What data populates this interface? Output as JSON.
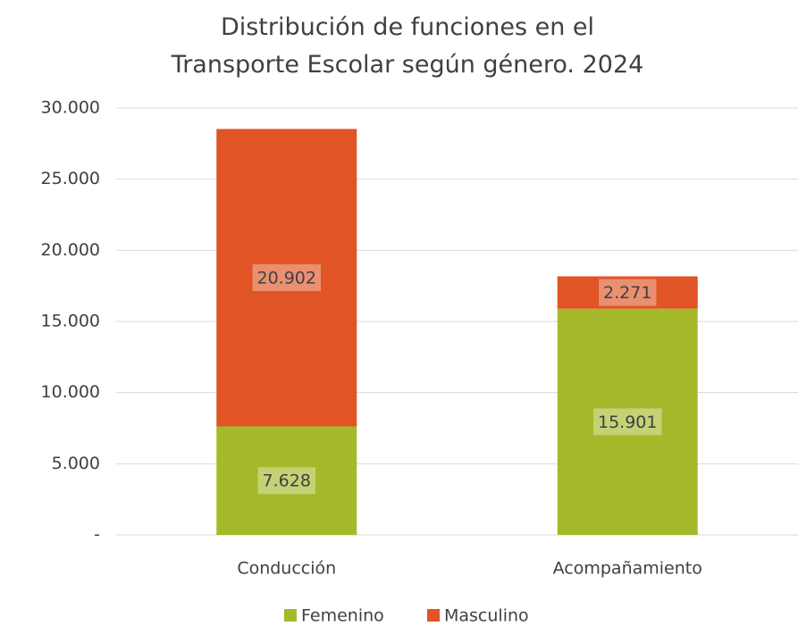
{
  "chart_data": {
    "type": "stacked_bar",
    "title": "Distribución de funciones en el Transporte Escolar según género. 2024",
    "categories": [
      "Conducción",
      "Acompañamiento"
    ],
    "series": [
      {
        "name": "Femenino",
        "color": "#a5b92b",
        "values": [
          7628,
          15901
        ],
        "value_labels": [
          "7.628",
          "15.901"
        ]
      },
      {
        "name": "Masculino",
        "color": "#e05426",
        "values": [
          20902,
          2271
        ],
        "value_labels": [
          "20.902",
          "2.271"
        ]
      }
    ],
    "ylim": [
      0,
      30000
    ],
    "yticks": [
      {
        "value": 0,
        "label": "-"
      },
      {
        "value": 5000,
        "label": "5.000"
      },
      {
        "value": 10000,
        "label": "10.000"
      },
      {
        "value": 15000,
        "label": "15.000"
      },
      {
        "value": 20000,
        "label": "20.000"
      },
      {
        "value": 25000,
        "label": "25.000"
      },
      {
        "value": 30000,
        "label": "30.000"
      }
    ],
    "grid": true,
    "legend": "bottom"
  }
}
